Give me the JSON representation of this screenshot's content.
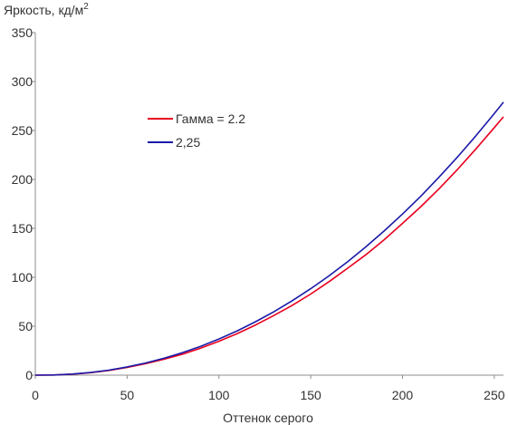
{
  "chart_data": {
    "type": "line",
    "title": "",
    "ylabel": "Яркость, кд/м",
    "ylabel_superscript": "2",
    "xlabel": "Оттенок серого",
    "xlim": [
      0,
      255
    ],
    "ylim": [
      0,
      350
    ],
    "xticks": [
      0,
      50,
      100,
      150,
      200,
      250
    ],
    "yticks": [
      0,
      50,
      100,
      150,
      200,
      250,
      300,
      350
    ],
    "grid": false,
    "legend_position": "center-left",
    "series": [
      {
        "name": "Гамма = 2.2",
        "color": "#e8001e",
        "x": [
          0,
          10,
          20,
          30,
          40,
          50,
          60,
          70,
          80,
          90,
          100,
          110,
          120,
          130,
          140,
          150,
          160,
          170,
          180,
          190,
          200,
          210,
          220,
          230,
          240,
          250,
          255
        ],
        "y": [
          0,
          0.2,
          1.0,
          2.5,
          4.8,
          7.9,
          11.7,
          16.2,
          21.3,
          27.6,
          34.6,
          42.5,
          51.3,
          61.0,
          71.4,
          82.9,
          95.6,
          109.2,
          123.0,
          138.3,
          155.1,
          172.2,
          190.6,
          210.3,
          231.2,
          253.0,
          264.0
        ]
      },
      {
        "name": "2,25",
        "color": "#1a1aa8",
        "x": [
          0,
          10,
          20,
          30,
          40,
          50,
          60,
          70,
          80,
          90,
          100,
          110,
          120,
          130,
          140,
          150,
          160,
          170,
          180,
          190,
          200,
          210,
          220,
          230,
          240,
          250,
          255
        ],
        "y": [
          0,
          0.2,
          1.1,
          2.7,
          5.1,
          8.4,
          12.4,
          17.2,
          22.9,
          29.4,
          36.9,
          45.3,
          54.6,
          64.9,
          76.1,
          88.3,
          101.5,
          115.7,
          131.0,
          147.3,
          164.6,
          183.0,
          202.5,
          223.0,
          244.6,
          267.3,
          279.0
        ]
      }
    ]
  }
}
